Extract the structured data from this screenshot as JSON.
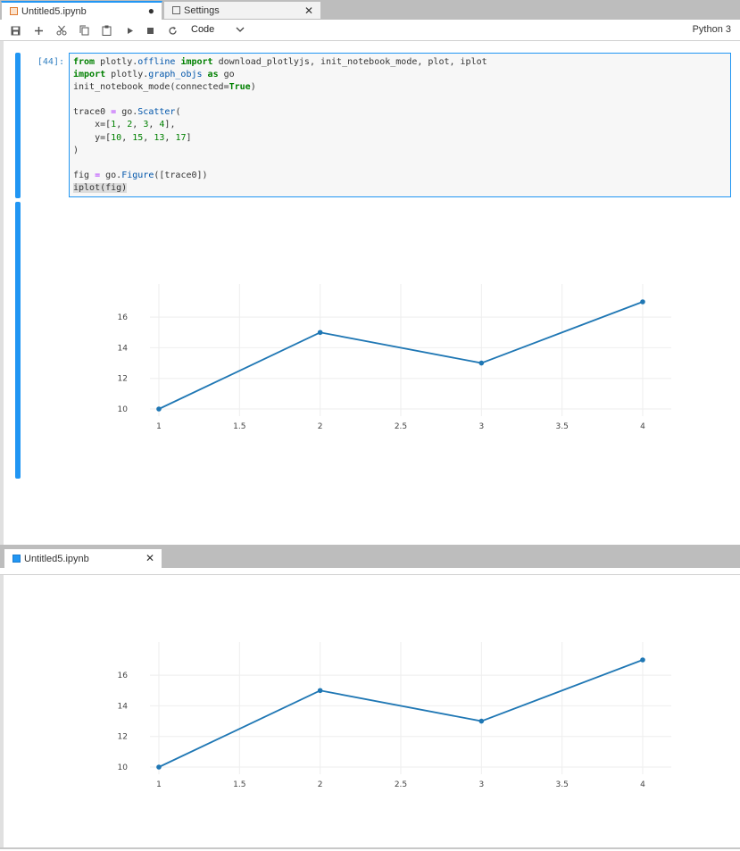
{
  "tabs_top": [
    {
      "label": "Untitled5.ipynb",
      "icon": "notebook-icon",
      "state": "unsaved-dot"
    },
    {
      "label": "Settings",
      "icon": "settings-icon",
      "state": "close"
    }
  ],
  "toolbar": {
    "buttons": [
      "save-icon",
      "add-icon",
      "cut-icon",
      "copy-icon",
      "paste-icon",
      "run-icon",
      "stop-icon",
      "restart-icon"
    ],
    "cell_type": "Code",
    "kernel": "Python 3"
  },
  "cell": {
    "prompt": "[44]:",
    "code_lines": [
      "from plotly.offline import download_plotlyjs, init_notebook_mode, plot, iplot",
      "import plotly.graph_objs as go",
      "init_notebook_mode(connected=True)",
      "",
      "trace0 = go.Scatter(",
      "    x=[1, 2, 3, 4],",
      "    y=[10, 15, 13, 17]",
      ")",
      "",
      "fig = go.Figure([trace0])",
      "iplot(fig)"
    ]
  },
  "tab_bottom": {
    "label": "Untitled5.ipynb",
    "icon": "console-icon"
  },
  "colors": {
    "accent": "#2196f3",
    "line": "#1f77b4"
  },
  "chart_data": [
    {
      "type": "line",
      "x": [
        1,
        2,
        3,
        4
      ],
      "y": [
        10,
        15,
        13,
        17
      ],
      "x_ticks": [
        "1",
        "1.5",
        "2",
        "2.5",
        "3",
        "3.5",
        "4"
      ],
      "y_ticks": [
        "10",
        "12",
        "14",
        "16"
      ],
      "xlim": [
        1,
        4
      ],
      "ylim": [
        10,
        17
      ],
      "grid": true,
      "markers": true
    },
    {
      "type": "line",
      "x": [
        1,
        2,
        3,
        4
      ],
      "y": [
        10,
        15,
        13,
        17
      ],
      "x_ticks": [
        "1",
        "1.5",
        "2",
        "2.5",
        "3",
        "3.5",
        "4"
      ],
      "y_ticks": [
        "10",
        "12",
        "14",
        "16"
      ],
      "xlim": [
        1,
        4
      ],
      "ylim": [
        10,
        17
      ],
      "grid": true,
      "markers": true
    }
  ]
}
